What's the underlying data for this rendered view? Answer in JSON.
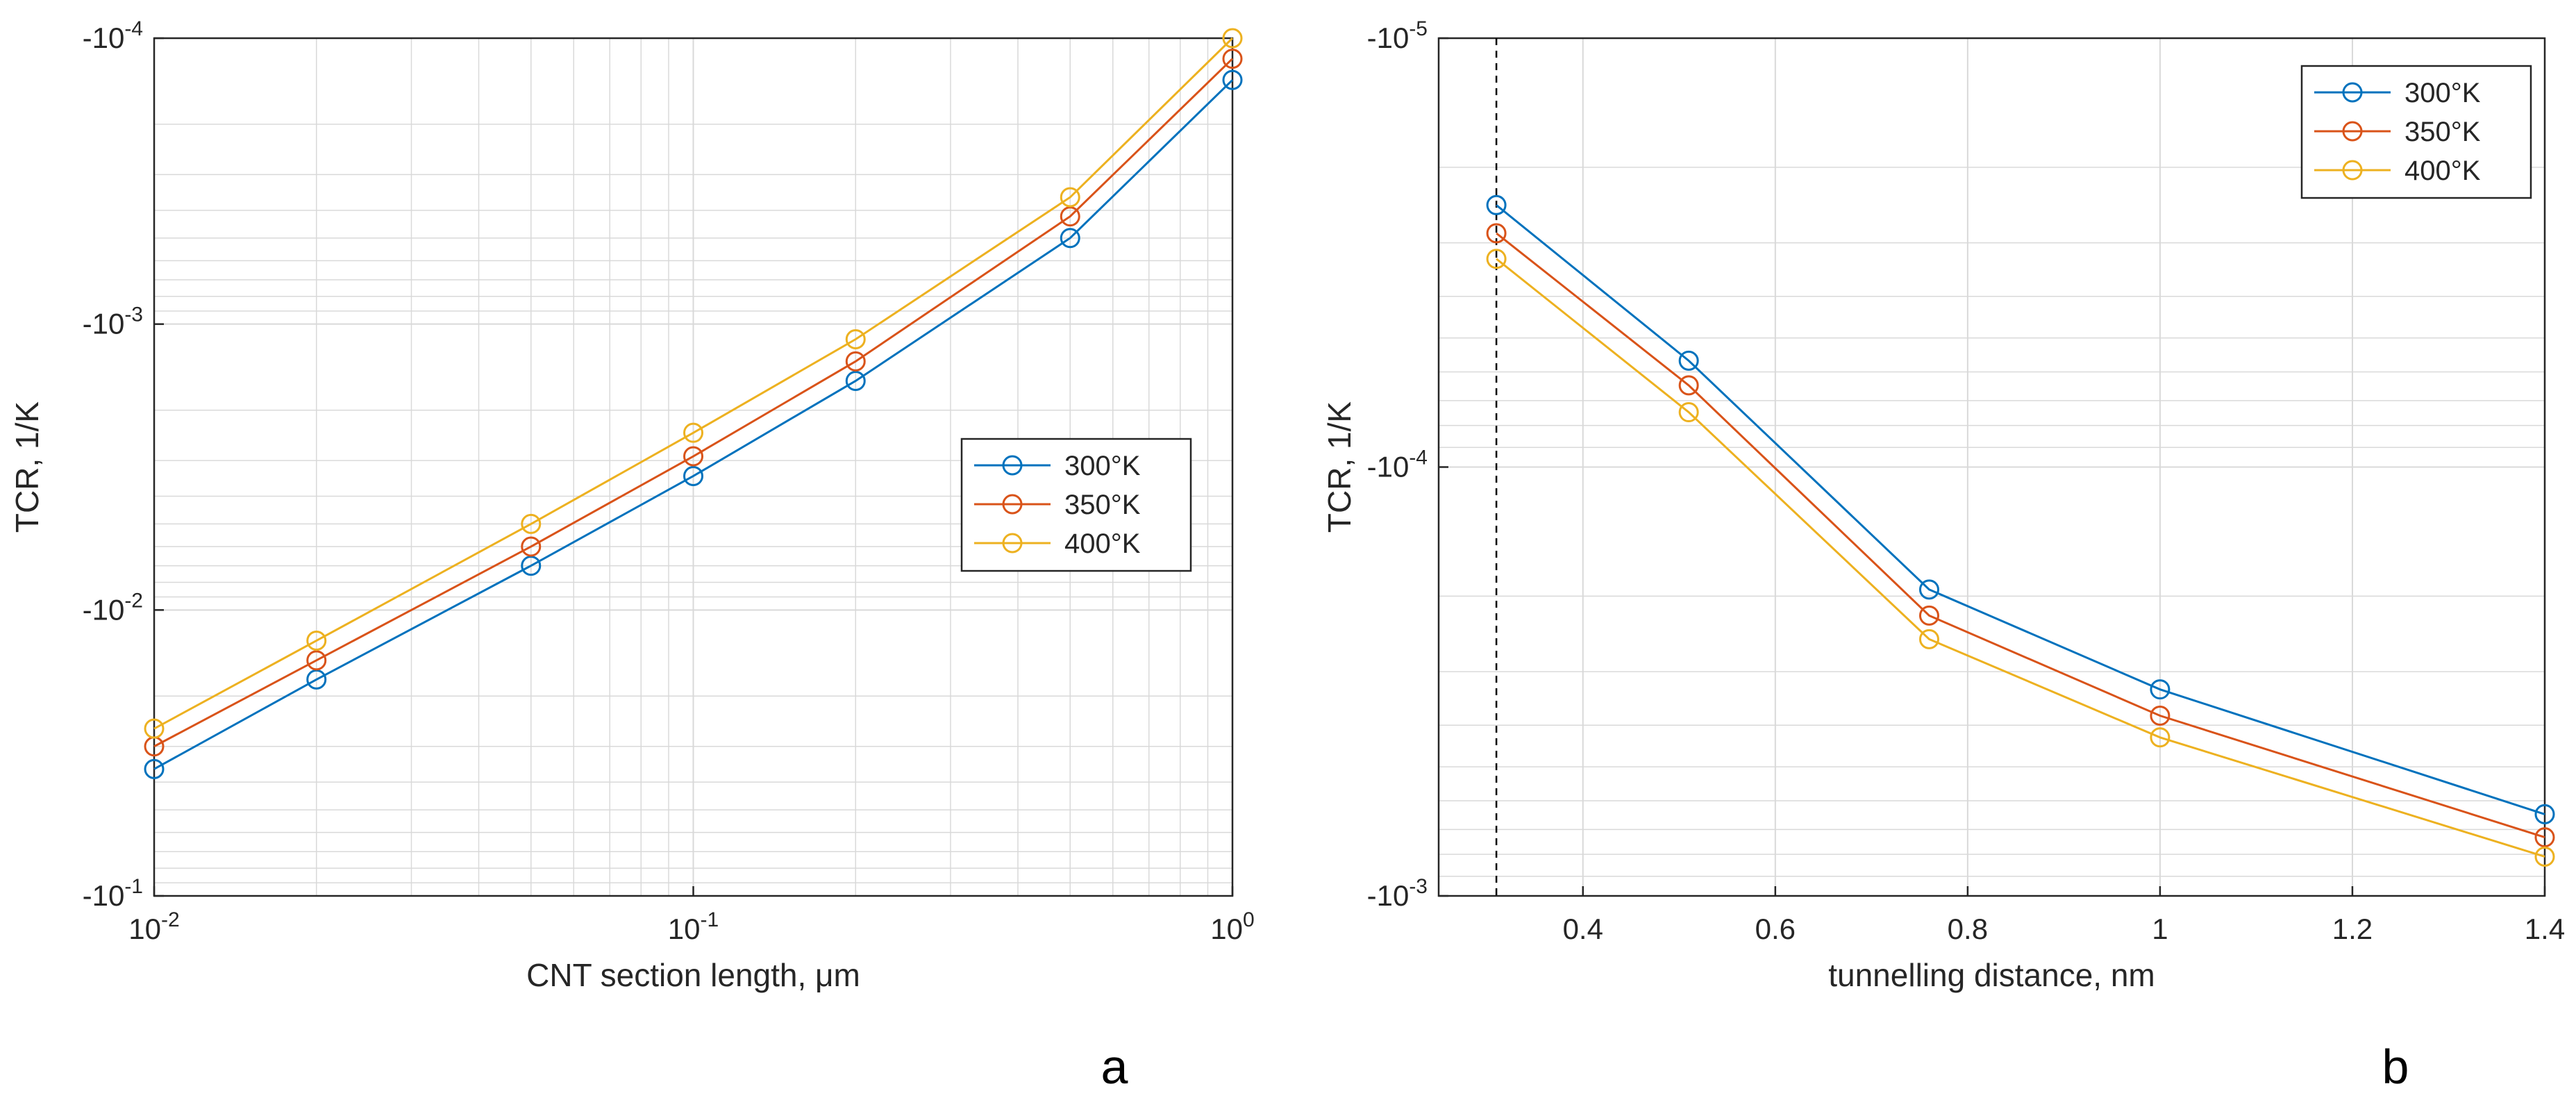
{
  "colors": {
    "series": [
      "#0072BD",
      "#D95319",
      "#EDB120"
    ],
    "axis": "#262626",
    "grid": "#d9d9d9",
    "dashed_line": "#000000"
  },
  "chart_data": [
    {
      "type": "line",
      "panel": "a",
      "marker": "circle",
      "xscale": "log",
      "yscale": "log",
      "xlabel": "CNT section length, μm",
      "ylabel": "TCR, 1/K",
      "xlim": [
        0.01,
        1
      ],
      "ylim": [
        -0.1,
        -0.0001
      ],
      "x_ticks": [
        {
          "value": 0.01,
          "base": "10",
          "exp": "-2"
        },
        {
          "value": 0.1,
          "base": "10",
          "exp": "-1"
        },
        {
          "value": 1,
          "base": "10",
          "exp": "0"
        }
      ],
      "y_ticks": [
        {
          "value": -0.0001,
          "base": "-10",
          "exp": "-4"
        },
        {
          "value": -0.001,
          "base": "-10",
          "exp": "-3"
        },
        {
          "value": -0.01,
          "base": "-10",
          "exp": "-2"
        },
        {
          "value": -0.1,
          "base": "-10",
          "exp": "-1"
        }
      ],
      "grid": true,
      "legend_position": "center-right",
      "x": [
        0.01,
        0.02,
        0.05,
        0.1,
        0.2,
        0.5,
        1
      ],
      "series": [
        {
          "name": "300°K",
          "values": [
            -0.036,
            -0.0175,
            -0.007,
            -0.0034,
            -0.00158,
            -0.0005,
            -0.00014
          ]
        },
        {
          "name": "350°K",
          "values": [
            -0.03,
            -0.015,
            -0.006,
            -0.0029,
            -0.00135,
            -0.00042,
            -0.000118
          ]
        },
        {
          "name": "400°K",
          "values": [
            -0.026,
            -0.0128,
            -0.005,
            -0.0024,
            -0.00113,
            -0.00036,
            -0.0001
          ]
        }
      ]
    },
    {
      "type": "line",
      "panel": "b",
      "marker": "circle",
      "xscale": "linear",
      "yscale": "log",
      "xlabel": "tunnelling distance, nm",
      "ylabel": "TCR, 1/K",
      "xlim": [
        0.25,
        1.4
      ],
      "ylim": [
        -0.001,
        -1e-05
      ],
      "x_ticks": [
        {
          "value": 0.4,
          "label": "0.4"
        },
        {
          "value": 0.6,
          "label": "0.6"
        },
        {
          "value": 0.8,
          "label": "0.8"
        },
        {
          "value": 1.0,
          "label": "1"
        },
        {
          "value": 1.2,
          "label": "1.2"
        },
        {
          "value": 1.4,
          "label": "1.4"
        }
      ],
      "y_ticks": [
        {
          "value": -1e-05,
          "base": "-10",
          "exp": "-5"
        },
        {
          "value": -0.0001,
          "base": "-10",
          "exp": "-4"
        },
        {
          "value": -0.001,
          "base": "-10",
          "exp": "-3"
        }
      ],
      "grid": true,
      "legend_position": "top-right",
      "dashed_vline_x": 0.31,
      "x": [
        0.31,
        0.51,
        0.76,
        1.0,
        1.4
      ],
      "series": [
        {
          "name": "300°K",
          "values": [
            -2.45e-05,
            -5.65e-05,
            -0.000193,
            -0.00033,
            -0.000645
          ]
        },
        {
          "name": "350°K",
          "values": [
            -2.85e-05,
            -6.45e-05,
            -0.000222,
            -0.00038,
            -0.00073
          ]
        },
        {
          "name": "400°K",
          "values": [
            -3.27e-05,
            -7.45e-05,
            -0.000252,
            -0.000427,
            -0.00081
          ]
        }
      ]
    }
  ],
  "labels": {
    "panel_a": "a",
    "panel_b": "b"
  }
}
